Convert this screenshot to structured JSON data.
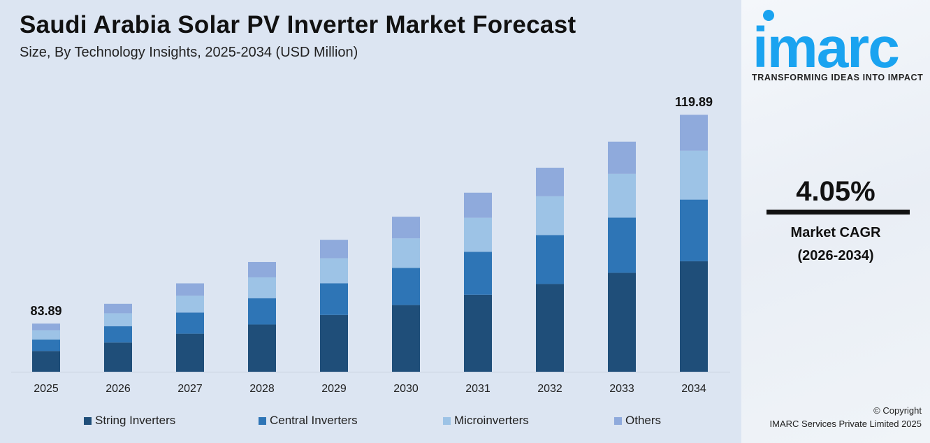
{
  "header": {
    "title": "Saudi Arabia Solar PV Inverter Market Forecast",
    "subtitle": "Size, By Technology Insights, 2025-2034 (USD Million)"
  },
  "chart_data": {
    "type": "bar",
    "stacked": true,
    "title": "Saudi Arabia Solar PV Inverter Market Forecast",
    "subtitle": "Size, By Technology Insights, 2025-2034 (USD Million)",
    "categories": [
      "2025",
      "2026",
      "2027",
      "2028",
      "2029",
      "2030",
      "2031",
      "2032",
      "2033",
      "2034"
    ],
    "series": [
      {
        "name": "String Inverters",
        "color": "#1f4e79",
        "values": [
          36.07,
          37.53,
          39.05,
          40.64,
          42.28,
          43.99,
          45.77,
          47.63,
          49.56,
          51.55
        ]
      },
      {
        "name": "Central Inverters",
        "color": "#2e75b6",
        "values": [
          20.13,
          20.95,
          21.8,
          22.68,
          23.6,
          24.55,
          25.55,
          26.58,
          27.66,
          28.77
        ]
      },
      {
        "name": "Microinverters",
        "color": "#9dc3e6",
        "values": [
          15.94,
          16.59,
          17.26,
          17.96,
          18.68,
          19.44,
          20.23,
          21.04,
          21.9,
          22.78
        ]
      },
      {
        "name": "Others",
        "color": "#8faadc",
        "values": [
          11.74,
          12.22,
          12.71,
          13.23,
          13.77,
          14.32,
          14.9,
          15.51,
          16.13,
          16.79
        ]
      }
    ],
    "totals": [
      83.89,
      87.29,
      90.82,
      94.5,
      98.33,
      102.31,
      106.45,
      110.76,
      115.25,
      119.89
    ],
    "data_labels": {
      "2025": "83.89",
      "2034": "119.89"
    },
    "legend_placement": "bottom",
    "grid": false
  },
  "panel": {
    "logo_text": "imarc",
    "tagline": "TRANSFORMING IDEAS INTO IMPACT",
    "cagr_value": "4.05%",
    "cagr_label": "Market CAGR",
    "cagr_period": "(2026-2034)",
    "copyright": "© Copyright",
    "company": "IMARC Services Private Limited 2025",
    "brand_color": "#1aa3f0"
  }
}
